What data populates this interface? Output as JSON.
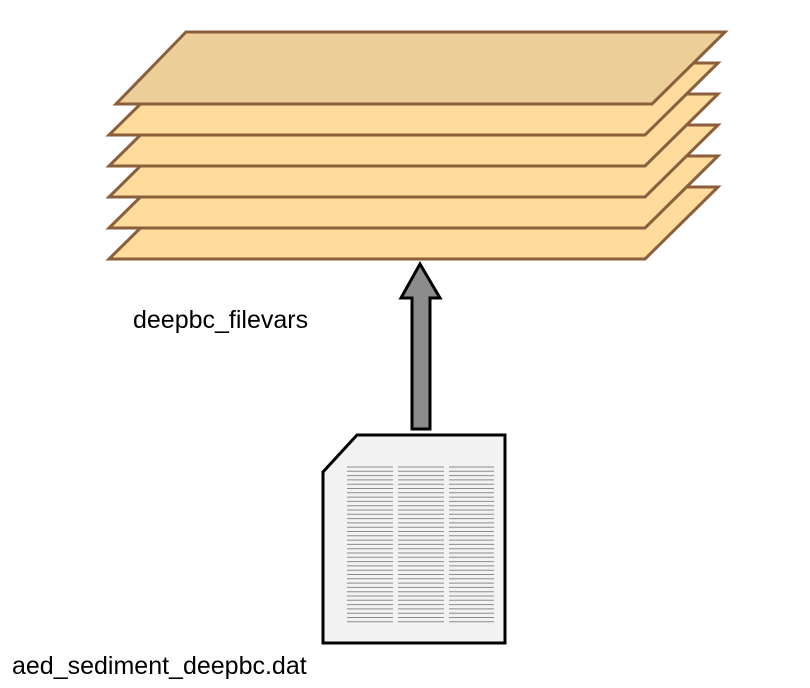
{
  "labels": {
    "arrow_label": "deepbc_filevars",
    "file_label": "aed_sediment_deepbc.dat"
  },
  "colors": {
    "layer_fill": "#fedc9c",
    "layer_top_fill": "#eccf98",
    "layer_stroke": "#8b5e3c",
    "arrow_fill": "#8c8c8c",
    "document_fill": "#f2f2f2",
    "document_lines": "#8c8c8c"
  },
  "icons": {
    "layer_stack": "layer-stack-icon",
    "arrow": "up-arrow-icon",
    "document": "data-file-icon"
  }
}
